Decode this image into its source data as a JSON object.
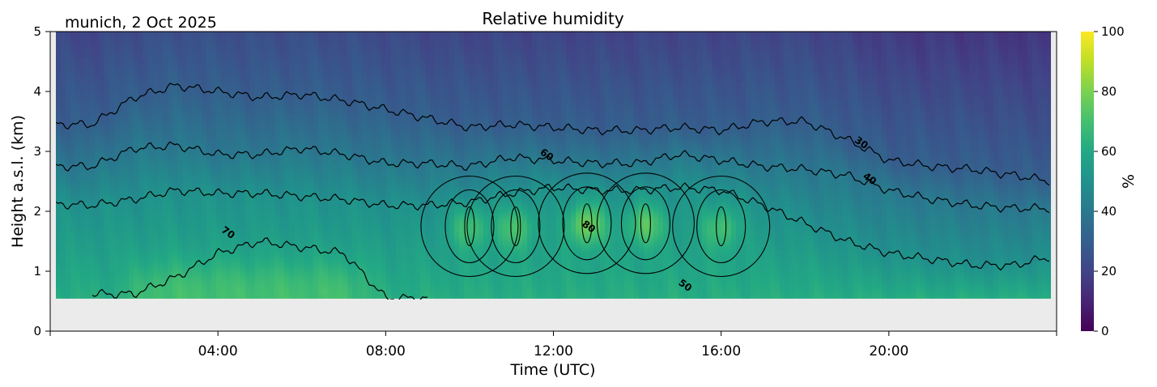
{
  "chart_data": {
    "type": "heatmap",
    "title": "Relative humidity",
    "subtitle": "munich, 2 Oct 2025",
    "xlabel": "Time (UTC)",
    "ylabel": "Height a.s.l. (km)",
    "xlim_hours": [
      0,
      24
    ],
    "ylim": [
      0,
      5
    ],
    "data_min_height_km": 0.55,
    "x_ticks": [
      {
        "value": 4,
        "label": "04:00"
      },
      {
        "value": 8,
        "label": "08:00"
      },
      {
        "value": 12,
        "label": "12:00"
      },
      {
        "value": 16,
        "label": "16:00"
      },
      {
        "value": 20,
        "label": "20:00"
      }
    ],
    "y_ticks": [
      {
        "value": 0,
        "label": "0"
      },
      {
        "value": 1,
        "label": "1"
      },
      {
        "value": 2,
        "label": "2"
      },
      {
        "value": 3,
        "label": "3"
      },
      {
        "value": 4,
        "label": "4"
      },
      {
        "value": 5,
        "label": "5"
      }
    ],
    "colorbar": {
      "label": "%",
      "range": [
        0,
        100
      ],
      "colormap": "viridis",
      "ticks": [
        {
          "value": 0,
          "label": "0"
        },
        {
          "value": 20,
          "label": "20"
        },
        {
          "value": 40,
          "label": "40"
        },
        {
          "value": 60,
          "label": "60"
        },
        {
          "value": 80,
          "label": "80"
        },
        {
          "value": 100,
          "label": "100"
        }
      ]
    },
    "contour_levels": [
      30,
      40,
      50,
      60,
      70,
      80
    ],
    "contour_labels": [
      {
        "label": "30",
        "time_h": 19.3,
        "height_km": 3.1
      },
      {
        "label": "40",
        "time_h": 19.5,
        "height_km": 2.5
      },
      {
        "label": "60",
        "time_h": 11.8,
        "height_km": 2.9
      },
      {
        "label": "70",
        "time_h": 4.2,
        "height_km": 1.6
      },
      {
        "label": "80",
        "time_h": 12.8,
        "height_km": 1.7
      },
      {
        "label": "50",
        "time_h": 15.1,
        "height_km": 0.72
      }
    ],
    "profile_contour_heights_km": {
      "times_h": [
        0.1,
        1,
        2,
        3,
        4,
        5,
        6,
        7,
        8,
        9,
        10,
        11,
        12,
        13,
        14,
        15,
        16,
        17,
        18,
        19,
        20,
        21,
        22,
        23,
        23.9
      ],
      "level_30": [
        3.45,
        3.45,
        3.9,
        4.1,
        4.0,
        3.9,
        3.95,
        3.85,
        3.7,
        3.55,
        3.4,
        3.45,
        3.4,
        3.35,
        3.35,
        3.4,
        3.35,
        3.5,
        3.5,
        3.2,
        2.85,
        2.75,
        2.7,
        2.6,
        2.5
      ],
      "level_40": [
        2.75,
        2.75,
        3.05,
        3.1,
        2.95,
        2.95,
        3.05,
        2.95,
        2.8,
        2.8,
        2.75,
        2.9,
        2.85,
        2.8,
        2.8,
        2.95,
        2.85,
        2.75,
        2.7,
        2.6,
        2.35,
        2.2,
        2.1,
        2.05,
        2.05
      ],
      "level_50": [
        2.12,
        2.1,
        2.2,
        2.35,
        2.3,
        2.3,
        2.25,
        2.2,
        2.1,
        2.1,
        2.15,
        2.3,
        2.4,
        2.35,
        2.35,
        2.4,
        2.35,
        2.1,
        1.8,
        1.5,
        1.3,
        1.2,
        1.1,
        1.1,
        1.25
      ],
      "level_70": [
        null,
        null,
        0.62,
        0.9,
        1.3,
        1.5,
        1.4,
        1.3,
        0.55,
        null,
        null,
        null,
        null,
        null,
        null,
        null,
        null,
        null,
        null,
        null,
        null,
        null,
        null,
        null,
        null
      ]
    },
    "moist_cores": [
      {
        "time_h": 10.0,
        "height_km": 1.75,
        "peak_percent": 78
      },
      {
        "time_h": 11.1,
        "height_km": 1.75,
        "peak_percent": 79
      },
      {
        "time_h": 12.8,
        "height_km": 1.8,
        "peak_percent": 87
      },
      {
        "time_h": 14.2,
        "height_km": 1.8,
        "peak_percent": 82
      },
      {
        "time_h": 16.0,
        "height_km": 1.75,
        "peak_percent": 78
      }
    ]
  }
}
